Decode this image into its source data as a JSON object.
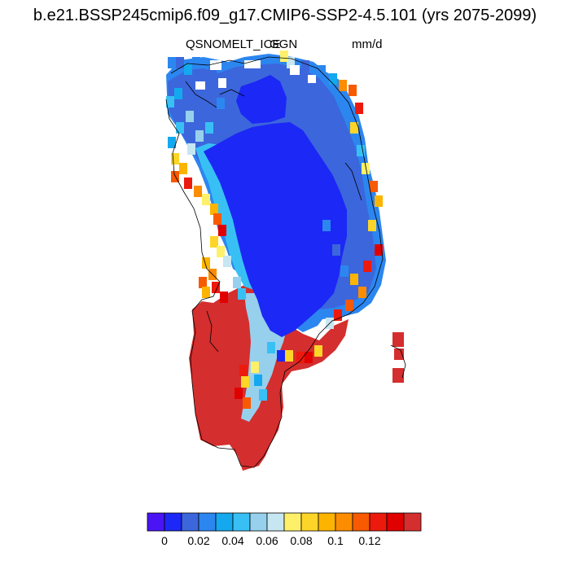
{
  "title": "b.e21.BSSP245cmip6.f09_g17.CMIP6-SSP2-4.5.101 (yrs 2075-2099)",
  "subtitle_left": "QSNOMELT_ICE",
  "subtitle_center": "GGN",
  "subtitle_right": "mm/d",
  "colorbar": {
    "colors": [
      "#4a14f5",
      "#1c28f5",
      "#3c66dc",
      "#2c86f0",
      "#14a8ee",
      "#38c0f5",
      "#96d0ec",
      "#c6e6f2",
      "#fff06a",
      "#fdd528",
      "#fcb400",
      "#fc8c00",
      "#f75a00",
      "#ec1a0c",
      "#e00000",
      "#d42e2e"
    ],
    "tick_labels": [
      "0",
      "0.02",
      "0.04",
      "0.06",
      "0.08",
      "0.1",
      "0.12"
    ]
  }
}
